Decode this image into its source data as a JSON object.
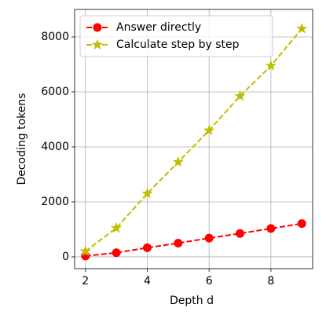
{
  "chart_data": {
    "type": "line",
    "xlabel": "Depth d",
    "ylabel": "Decoding tokens",
    "x": [
      2,
      3,
      4,
      5,
      6,
      7,
      8,
      9
    ],
    "series": [
      {
        "name": "Answer directly",
        "color": "#ff0000",
        "marker": "circle",
        "values": [
          30,
          150,
          330,
          500,
          680,
          850,
          1030,
          1210
        ]
      },
      {
        "name": "Calculate step by step",
        "color": "#bfbf00",
        "marker": "star",
        "values": [
          200,
          1050,
          2300,
          3450,
          4600,
          5850,
          6950,
          8300
        ]
      }
    ],
    "xlim": [
      1.65,
      9.35
    ],
    "xticks": [
      2,
      4,
      6,
      8
    ],
    "ylim": [
      -430,
      9000
    ],
    "yticks": [
      0,
      2000,
      4000,
      6000,
      8000
    ],
    "grid": true,
    "legend": "upper left"
  }
}
